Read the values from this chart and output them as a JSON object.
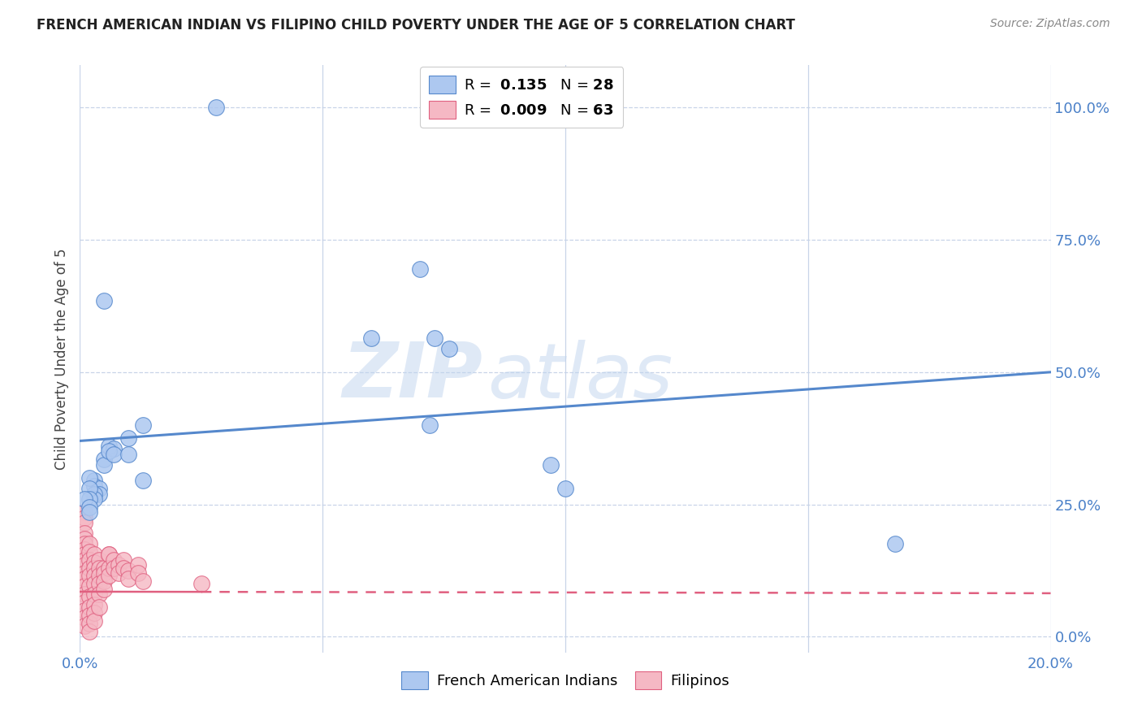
{
  "title": "FRENCH AMERICAN INDIAN VS FILIPINO CHILD POVERTY UNDER THE AGE OF 5 CORRELATION CHART",
  "source": "Source: ZipAtlas.com",
  "ylabel": "Child Poverty Under the Age of 5",
  "ytick_labels": [
    "0.0%",
    "25.0%",
    "50.0%",
    "75.0%",
    "100.0%"
  ],
  "ytick_values": [
    0.0,
    0.25,
    0.5,
    0.75,
    1.0
  ],
  "xmin": 0.0,
  "xmax": 0.2,
  "ymin": -0.03,
  "ymax": 1.08,
  "watermark_zip": "ZIP",
  "watermark_atlas": "atlas",
  "blue_color": "#adc8f0",
  "pink_color": "#f5b8c4",
  "blue_line_color": "#5588cc",
  "pink_line_color": "#e06080",
  "blue_scatter": [
    [
      0.028,
      1.0
    ],
    [
      0.005,
      0.635
    ],
    [
      0.07,
      0.695
    ],
    [
      0.06,
      0.565
    ],
    [
      0.073,
      0.565
    ],
    [
      0.076,
      0.545
    ],
    [
      0.072,
      0.4
    ],
    [
      0.01,
      0.375
    ],
    [
      0.013,
      0.4
    ],
    [
      0.097,
      0.325
    ],
    [
      0.005,
      0.335
    ],
    [
      0.005,
      0.325
    ],
    [
      0.006,
      0.36
    ],
    [
      0.007,
      0.355
    ],
    [
      0.006,
      0.35
    ],
    [
      0.007,
      0.345
    ],
    [
      0.01,
      0.345
    ],
    [
      0.013,
      0.295
    ],
    [
      0.003,
      0.295
    ],
    [
      0.003,
      0.285
    ],
    [
      0.004,
      0.28
    ],
    [
      0.004,
      0.27
    ],
    [
      0.003,
      0.27
    ],
    [
      0.003,
      0.26
    ],
    [
      0.002,
      0.3
    ],
    [
      0.002,
      0.28
    ],
    [
      0.002,
      0.26
    ],
    [
      0.168,
      0.175
    ],
    [
      0.001,
      0.26
    ],
    [
      0.002,
      0.245
    ],
    [
      0.002,
      0.235
    ],
    [
      0.1,
      0.28
    ]
  ],
  "pink_scatter": [
    [
      0.001,
      0.235
    ],
    [
      0.001,
      0.225
    ],
    [
      0.001,
      0.215
    ],
    [
      0.001,
      0.195
    ],
    [
      0.001,
      0.185
    ],
    [
      0.001,
      0.175
    ],
    [
      0.001,
      0.165
    ],
    [
      0.001,
      0.155
    ],
    [
      0.001,
      0.145
    ],
    [
      0.001,
      0.135
    ],
    [
      0.001,
      0.12
    ],
    [
      0.001,
      0.11
    ],
    [
      0.001,
      0.095
    ],
    [
      0.001,
      0.08
    ],
    [
      0.001,
      0.065
    ],
    [
      0.001,
      0.05
    ],
    [
      0.001,
      0.035
    ],
    [
      0.001,
      0.02
    ],
    [
      0.002,
      0.175
    ],
    [
      0.002,
      0.16
    ],
    [
      0.002,
      0.145
    ],
    [
      0.002,
      0.13
    ],
    [
      0.002,
      0.115
    ],
    [
      0.002,
      0.095
    ],
    [
      0.002,
      0.075
    ],
    [
      0.002,
      0.055
    ],
    [
      0.002,
      0.04
    ],
    [
      0.002,
      0.025
    ],
    [
      0.002,
      0.01
    ],
    [
      0.003,
      0.155
    ],
    [
      0.003,
      0.14
    ],
    [
      0.003,
      0.13
    ],
    [
      0.003,
      0.115
    ],
    [
      0.003,
      0.1
    ],
    [
      0.003,
      0.08
    ],
    [
      0.003,
      0.06
    ],
    [
      0.003,
      0.045
    ],
    [
      0.003,
      0.03
    ],
    [
      0.004,
      0.145
    ],
    [
      0.004,
      0.13
    ],
    [
      0.004,
      0.115
    ],
    [
      0.004,
      0.1
    ],
    [
      0.004,
      0.08
    ],
    [
      0.004,
      0.055
    ],
    [
      0.005,
      0.13
    ],
    [
      0.005,
      0.12
    ],
    [
      0.005,
      0.105
    ],
    [
      0.005,
      0.09
    ],
    [
      0.006,
      0.155
    ],
    [
      0.006,
      0.155
    ],
    [
      0.006,
      0.13
    ],
    [
      0.006,
      0.115
    ],
    [
      0.007,
      0.145
    ],
    [
      0.007,
      0.13
    ],
    [
      0.008,
      0.135
    ],
    [
      0.008,
      0.12
    ],
    [
      0.009,
      0.145
    ],
    [
      0.009,
      0.13
    ],
    [
      0.01,
      0.125
    ],
    [
      0.01,
      0.11
    ],
    [
      0.012,
      0.135
    ],
    [
      0.012,
      0.12
    ],
    [
      0.013,
      0.105
    ],
    [
      0.025,
      0.1
    ]
  ],
  "blue_trend_x": [
    0.0,
    0.2
  ],
  "blue_trend_y": [
    0.37,
    0.5
  ],
  "pink_trend_x": [
    0.0,
    0.2
  ],
  "pink_trend_solid_end": 0.025,
  "pink_trend_y": [
    0.085,
    0.082
  ],
  "grid_color": "#c8d4e8",
  "background_color": "#ffffff",
  "title_color": "#222222",
  "source_color": "#888888",
  "tick_color": "#4a80c8",
  "ylabel_color": "#444444"
}
